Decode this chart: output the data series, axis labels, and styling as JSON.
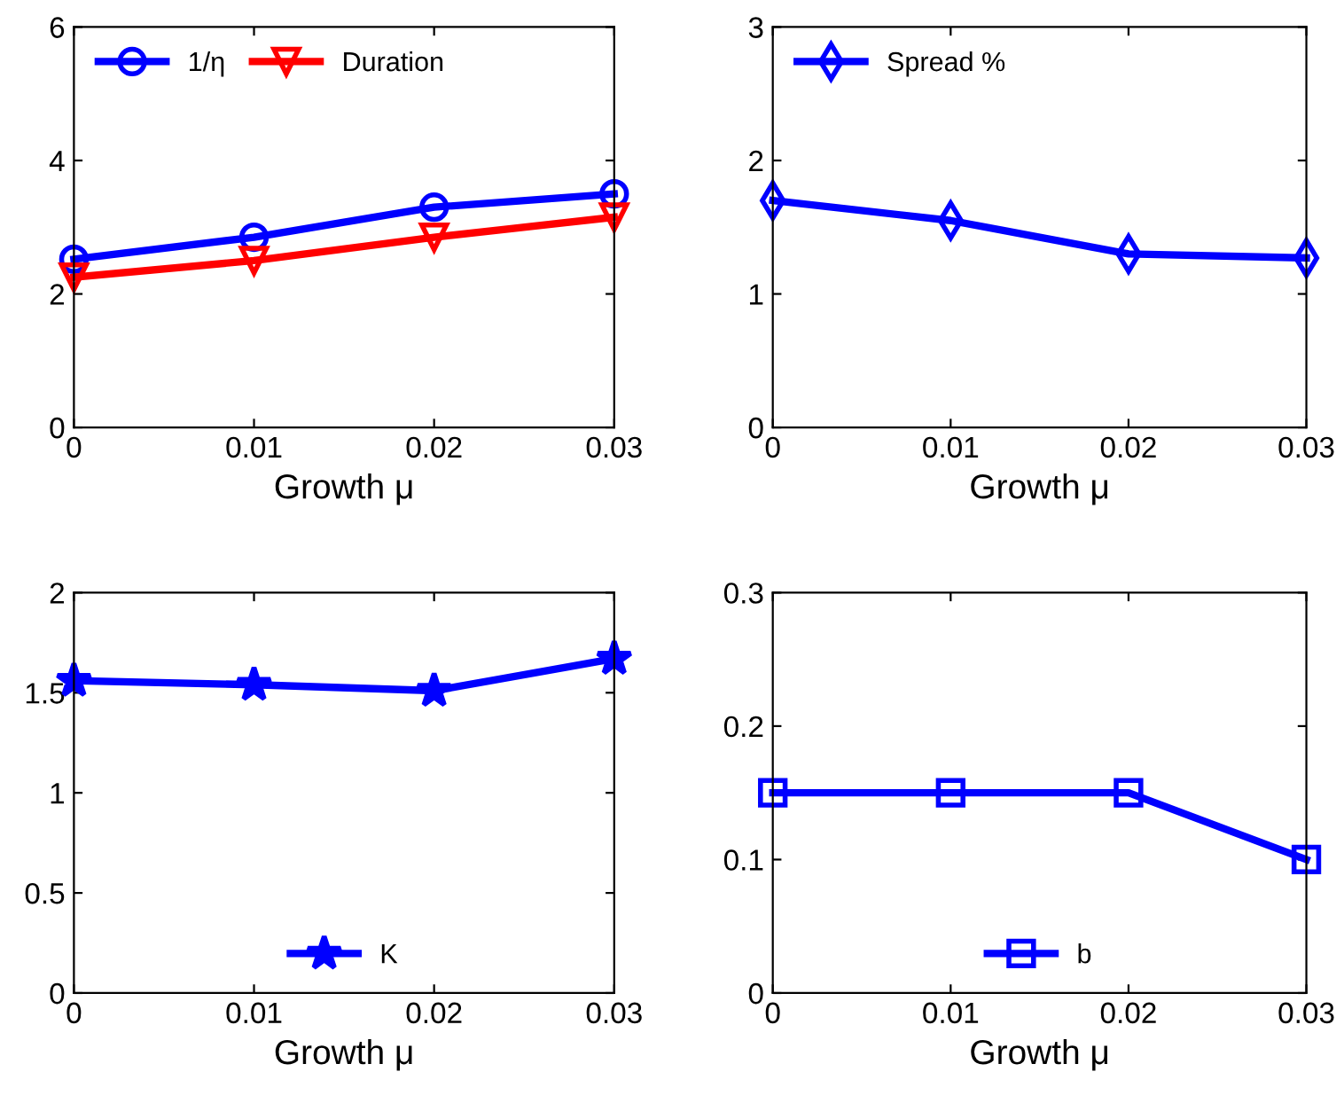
{
  "chart_data": [
    {
      "type": "line",
      "xlabel": "Growth μ",
      "x": [
        0,
        0.01,
        0.02,
        0.03
      ],
      "xlim": [
        0,
        0.03
      ],
      "xticks": [
        0,
        0.01,
        0.02,
        0.03
      ],
      "ylim": [
        0,
        6
      ],
      "yticks": [
        0,
        2,
        4,
        6
      ],
      "grid": false,
      "legend": "top left",
      "series": [
        {
          "name": "1/η",
          "color": "#0000ff",
          "marker": "circle",
          "values": [
            2.52,
            2.85,
            3.3,
            3.5
          ]
        },
        {
          "name": "Duration",
          "color": "#ff0000",
          "marker": "triangle",
          "values": [
            2.25,
            2.5,
            2.85,
            3.15
          ]
        }
      ]
    },
    {
      "type": "line",
      "xlabel": "Growth μ",
      "x": [
        0,
        0.01,
        0.02,
        0.03
      ],
      "xlim": [
        0,
        0.03
      ],
      "xticks": [
        0,
        0.01,
        0.02,
        0.03
      ],
      "ylim": [
        0,
        3
      ],
      "yticks": [
        0,
        1,
        2,
        3
      ],
      "grid": false,
      "legend": "top left",
      "series": [
        {
          "name": "Spread %",
          "color": "#0000ff",
          "marker": "diamond",
          "values": [
            1.7,
            1.55,
            1.3,
            1.27
          ]
        }
      ]
    },
    {
      "type": "line",
      "xlabel": "Growth μ",
      "x": [
        0,
        0.01,
        0.02,
        0.03
      ],
      "xlim": [
        0,
        0.03
      ],
      "xticks": [
        0,
        0.01,
        0.02,
        0.03
      ],
      "ylim": [
        0,
        2
      ],
      "yticks": [
        0,
        0.5,
        1,
        1.5,
        2
      ],
      "grid": false,
      "legend": "bottom",
      "series": [
        {
          "name": "K",
          "color": "#0000ff",
          "marker": "star",
          "values": [
            1.56,
            1.54,
            1.51,
            1.67
          ]
        }
      ]
    },
    {
      "type": "line",
      "xlabel": "Growth μ",
      "x": [
        0,
        0.01,
        0.02,
        0.03
      ],
      "xlim": [
        0,
        0.03
      ],
      "xticks": [
        0,
        0.01,
        0.02,
        0.03
      ],
      "ylim": [
        0,
        0.3
      ],
      "yticks": [
        0,
        0.1,
        0.2,
        0.3
      ],
      "grid": false,
      "legend": "bottom",
      "series": [
        {
          "name": "b",
          "color": "#0000ff",
          "marker": "square",
          "values": [
            0.15,
            0.15,
            0.15,
            0.1
          ]
        }
      ]
    }
  ]
}
